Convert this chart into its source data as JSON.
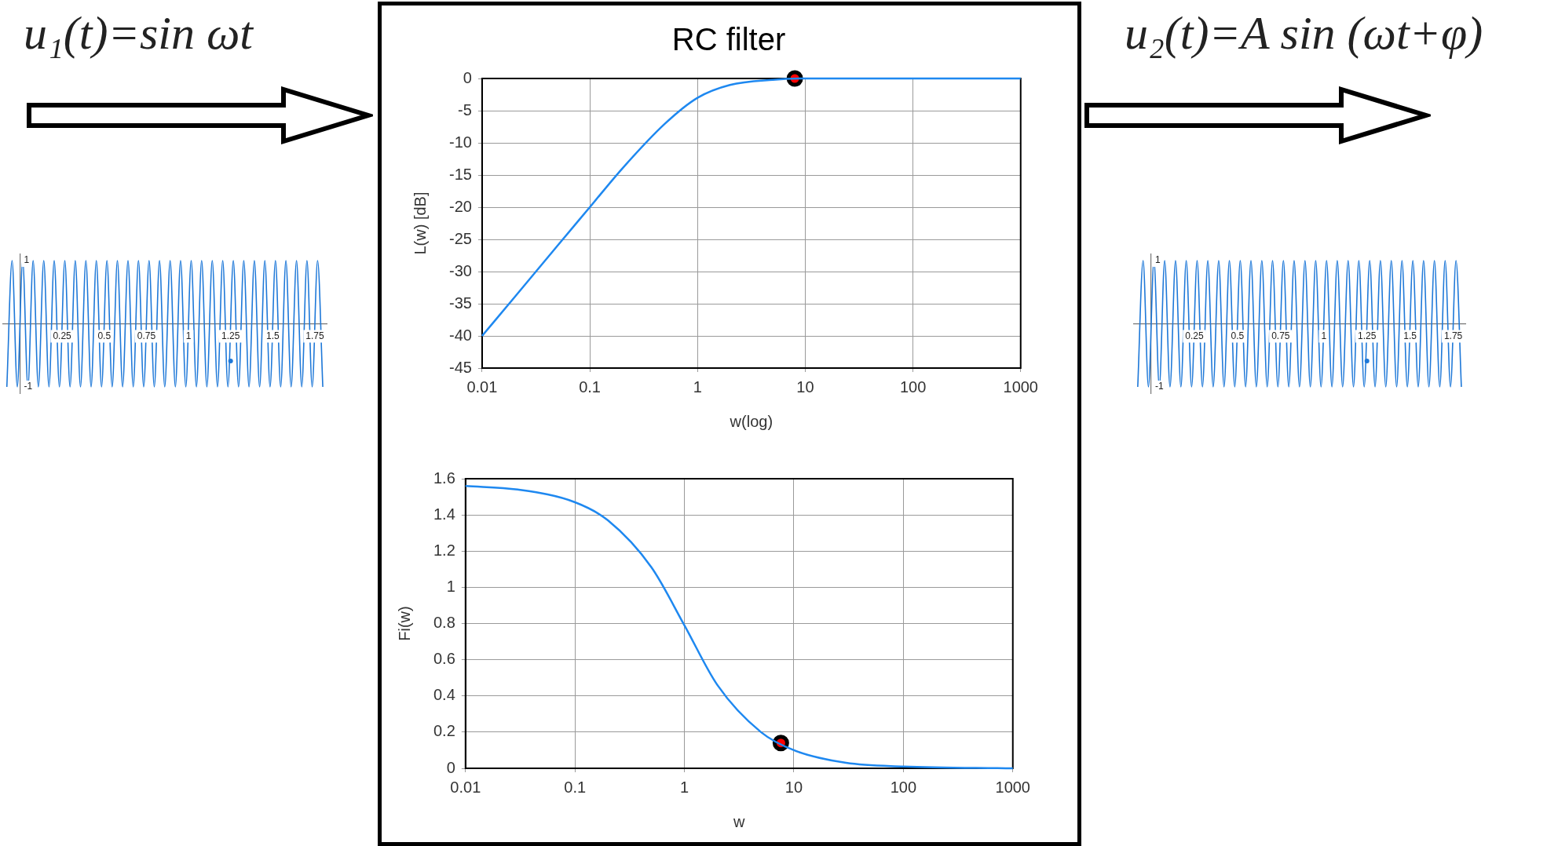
{
  "chart_data": [
    {
      "type": "line",
      "title": "u₁(t)=sin ωt",
      "xlim": [
        -0.1,
        1.82
      ],
      "xticks": [
        0.25,
        0.5,
        0.75,
        1,
        1.25,
        1.5,
        1.75
      ],
      "ylim": [
        -1.1,
        1.1
      ],
      "yticks": [
        1,
        -1
      ],
      "grid": false,
      "legend": false,
      "marker": "none",
      "series": [
        {
          "color": "#1e78d8",
          "x": [
            -0.078,
            -0.047,
            -0.016,
            0.016,
            0.047,
            0.078,
            0.109,
            0.141,
            0.172,
            0.203,
            0.234,
            0.266,
            0.297,
            0.328,
            0.359,
            0.391,
            0.422,
            0.453,
            0.484,
            0.516,
            0.547,
            0.578,
            0.609,
            0.641,
            0.672,
            0.703,
            0.734,
            0.766,
            0.797,
            0.828,
            0.859,
            0.891,
            0.922,
            0.953,
            0.984,
            1.016,
            1.047,
            1.078,
            1.109,
            1.141,
            1.172,
            1.203,
            1.234,
            1.266,
            1.297,
            1.328,
            1.359,
            1.391,
            1.422,
            1.453,
            1.484,
            1.516,
            1.547,
            1.578,
            1.609,
            1.641,
            1.672,
            1.703,
            1.734,
            1.766,
            1.797
          ],
          "values": [
            -1,
            1,
            -1,
            1,
            -1,
            1,
            -1,
            1,
            -1,
            1,
            -1,
            1,
            -1,
            1,
            -1,
            1,
            -1,
            1,
            -1,
            1,
            -1,
            1,
            -1,
            1,
            -1,
            1,
            -1,
            1,
            -1,
            1,
            -1,
            1,
            -1,
            1,
            -1,
            1,
            -1,
            1,
            -1,
            1,
            -1,
            1,
            -1,
            1,
            -1,
            1,
            -1,
            1,
            -1,
            1,
            -1,
            1,
            -1,
            1,
            -1,
            1,
            -1,
            1,
            -1,
            1,
            -1
          ]
        },
        {
          "type": "scatter",
          "marker": "circle",
          "color": "#1e78d8",
          "x": [
            1.25
          ],
          "values": [
            -0.59
          ]
        }
      ]
    },
    {
      "type": "line",
      "title": "RC filter",
      "xlabel": "w(log)",
      "ylabel": "L(w) [dB]",
      "log": "x",
      "xlim": [
        0.01,
        1000
      ],
      "xticks": [
        0.01,
        0.1,
        1,
        10,
        100,
        1000
      ],
      "ylim": [
        -45,
        0
      ],
      "yticks": [
        0,
        -5,
        -10,
        -15,
        -20,
        -25,
        -30,
        -35,
        -40,
        -45
      ],
      "grid": true,
      "legend": false,
      "marker": "none",
      "series": [
        {
          "color": "#1e88f0",
          "x": [
            0.01,
            0.02,
            0.05,
            0.1,
            0.2,
            0.5,
            1,
            2,
            5,
            10,
            100,
            1000
          ],
          "values": [
            -40,
            -34,
            -26,
            -20,
            -14,
            -7,
            -3,
            -1,
            -0.2,
            0,
            0,
            0
          ]
        },
        {
          "type": "scatter",
          "marker": "circle",
          "color": "#ff0000",
          "x": [
            8
          ],
          "values": [
            0
          ]
        }
      ]
    },
    {
      "type": "line",
      "title": "u₂(t)=A sin (ωt+φ)",
      "xlim": [
        -0.1,
        1.82
      ],
      "xticks": [
        0.25,
        0.5,
        0.75,
        1,
        1.25,
        1.5,
        1.75
      ],
      "ylim": [
        -1.1,
        1.1
      ],
      "yticks": [
        1,
        -1
      ],
      "grid": false,
      "legend": false,
      "marker": "none",
      "series": [
        {
          "color": "#1e78d8",
          "x": [
            -0.078,
            -0.047,
            -0.016,
            0.016,
            0.047,
            0.078,
            0.109,
            0.141,
            0.172,
            0.203,
            0.234,
            0.266,
            0.297,
            0.328,
            0.359,
            0.391,
            0.422,
            0.453,
            0.484,
            0.516,
            0.547,
            0.578,
            0.609,
            0.641,
            0.672,
            0.703,
            0.734,
            0.766,
            0.797,
            0.828,
            0.859,
            0.891,
            0.922,
            0.953,
            0.984,
            1.016,
            1.047,
            1.078,
            1.109,
            1.141,
            1.172,
            1.203,
            1.234,
            1.266,
            1.297,
            1.328,
            1.359,
            1.391,
            1.422,
            1.453,
            1.484,
            1.516,
            1.547,
            1.578,
            1.609,
            1.641,
            1.672,
            1.703,
            1.734,
            1.766,
            1.797
          ],
          "values": [
            -1,
            1,
            -1,
            1,
            -1,
            1,
            -1,
            1,
            -1,
            1,
            -1,
            1,
            -1,
            1,
            -1,
            1,
            -1,
            1,
            -1,
            1,
            -1,
            1,
            -1,
            1,
            -1,
            1,
            -1,
            1,
            -1,
            1,
            -1,
            1,
            -1,
            1,
            -1,
            1,
            -1,
            1,
            -1,
            1,
            -1,
            1,
            -1,
            1,
            -1,
            1,
            -1,
            1,
            -1,
            1,
            -1,
            1,
            -1,
            1,
            -1,
            1,
            -1,
            1,
            -1,
            1,
            -1
          ]
        },
        {
          "type": "scatter",
          "marker": "circle",
          "color": "#1e78d8",
          "x": [
            1.25
          ],
          "values": [
            -0.59
          ]
        }
      ]
    },
    {
      "type": "line",
      "xlabel": "w",
      "ylabel": "Fi(w)",
      "log": "x",
      "xlim": [
        0.01,
        1000
      ],
      "xticks": [
        0.01,
        0.1,
        1,
        10,
        100,
        1000
      ],
      "ylim": [
        0,
        1.6
      ],
      "yticks": [
        0,
        0.2,
        0.4,
        0.6,
        0.8,
        1,
        1.2,
        1.4,
        1.6
      ],
      "grid": true,
      "legend": false,
      "marker": "none",
      "series": [
        {
          "color": "#1e88f0",
          "x": [
            0.01,
            0.03,
            0.1,
            0.2,
            0.5,
            1,
            2,
            5,
            10,
            30,
            100,
            1000
          ],
          "values": [
            1.56,
            1.54,
            1.47,
            1.37,
            1.11,
            0.79,
            0.46,
            0.2,
            0.1,
            0.03,
            0.01,
            0
          ]
        },
        {
          "type": "scatter",
          "marker": "circle",
          "color": "#ff0000",
          "x": [
            7.6
          ],
          "values": [
            0.14
          ]
        }
      ]
    }
  ]
}
